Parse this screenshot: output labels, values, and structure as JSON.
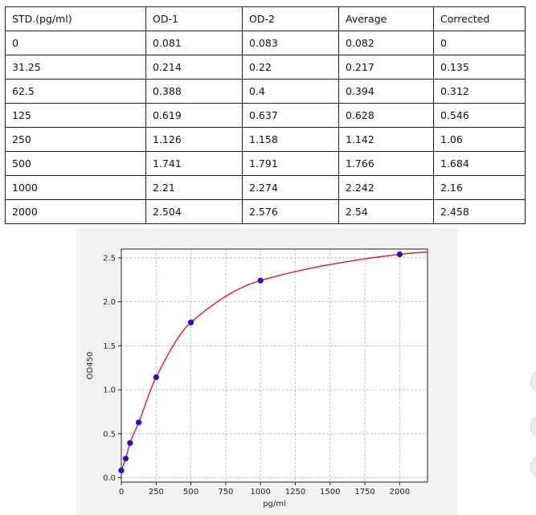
{
  "table": {
    "headers": [
      "STD.(pg/ml)",
      "OD-1",
      "OD-2",
      "Average",
      "Corrected"
    ],
    "rows": [
      [
        "0",
        "0.081",
        "0.083",
        "0.082",
        "0"
      ],
      [
        "31.25",
        "0.214",
        "0.22",
        "0.217",
        "0.135"
      ],
      [
        "62.5",
        "0.388",
        "0.4",
        "0.394",
        "0.312"
      ],
      [
        "125",
        "0.619",
        "0.637",
        "0.628",
        "0.546"
      ],
      [
        "250",
        "1.126",
        "1.158",
        "1.142",
        "1.06"
      ],
      [
        "500",
        "1.741",
        "1.791",
        "1.766",
        "1.684"
      ],
      [
        "1000",
        "2.21",
        "2.274",
        "2.242",
        "2.16"
      ],
      [
        "2000",
        "2.504",
        "2.576",
        "2.54",
        "2.458"
      ]
    ]
  },
  "chart_data": {
    "type": "scatter",
    "title": "",
    "xlabel": "pg/ml",
    "ylabel": "OD450",
    "xlim": [
      0,
      2200
    ],
    "ylim": [
      -0.05,
      2.6
    ],
    "xticks": [
      0,
      250,
      500,
      750,
      1000,
      1250,
      1500,
      1750,
      2000
    ],
    "yticks": [
      0.0,
      0.5,
      1.0,
      1.5,
      2.0,
      2.5
    ],
    "grid": true,
    "point_color": "#1a1aa8",
    "curve_color": "#d42020",
    "x": [
      0,
      31.25,
      62.5,
      125,
      250,
      500,
      1000,
      2000
    ],
    "y": [
      0.082,
      0.217,
      0.394,
      0.628,
      1.142,
      1.766,
      2.242,
      2.54
    ]
  }
}
